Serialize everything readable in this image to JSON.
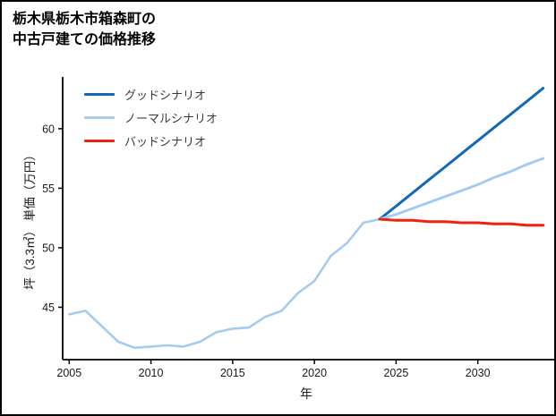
{
  "chart_data": {
    "type": "line",
    "title": "栃木県栃木市箱森町の中古戸建ての価格推移",
    "title_lines": [
      "栃木県栃木市箱森町の",
      "中古戸建ての価格推移"
    ],
    "xlabel": "年",
    "ylabel": "坪（3.3㎡） 単価（万円）",
    "xlim": [
      2004.6,
      2034.4
    ],
    "ylim": [
      40.6,
      64.2
    ],
    "xticks": [
      2005,
      2010,
      2015,
      2020,
      2025,
      2030
    ],
    "yticks": [
      45,
      50,
      55,
      60
    ],
    "axis_color": "#000000",
    "tick_label_color": "#1a1a1a",
    "series": [
      {
        "name": "historical",
        "legend": null,
        "color": "#a4cbf1",
        "width": 2.6,
        "x": [
          2005,
          2006,
          2007,
          2008,
          2009,
          2010,
          2011,
          2012,
          2013,
          2014,
          2015,
          2016,
          2017,
          2018,
          2019,
          2020,
          2021,
          2022,
          2023,
          2024
        ],
        "values": [
          44.4,
          44.7,
          43.4,
          42.1,
          41.6,
          41.7,
          41.8,
          41.7,
          42.1,
          42.9,
          43.2,
          43.3,
          44.2,
          44.7,
          46.2,
          47.2,
          49.3,
          50.4,
          52.1,
          52.4
        ]
      },
      {
        "name": "good-scenario",
        "legend": "グッドシナリオ",
        "color": "#1568b8",
        "width": 3,
        "x": [
          2024,
          2025,
          2026,
          2027,
          2028,
          2029,
          2030,
          2031,
          2032,
          2033,
          2034
        ],
        "values": [
          52.4,
          53.5,
          54.6,
          55.7,
          56.8,
          57.9,
          59.0,
          60.1,
          61.2,
          62.3,
          63.4
        ]
      },
      {
        "name": "normal-scenario",
        "legend": "ノーマルシナリオ",
        "color": "#a4cbf1",
        "width": 3,
        "x": [
          2024,
          2025,
          2026,
          2027,
          2028,
          2029,
          2030,
          2031,
          2032,
          2033,
          2034
        ],
        "values": [
          52.4,
          52.8,
          53.3,
          53.8,
          54.3,
          54.8,
          55.3,
          55.9,
          56.4,
          57.0,
          57.5
        ]
      },
      {
        "name": "bad-scenario",
        "legend": "バッドシナリオ",
        "color": "#ee2211",
        "width": 3,
        "x": [
          2024,
          2025,
          2026,
          2027,
          2028,
          2029,
          2030,
          2031,
          2032,
          2033,
          2034
        ],
        "values": [
          52.4,
          52.3,
          52.3,
          52.2,
          52.2,
          52.1,
          52.1,
          52.0,
          52.0,
          51.9,
          51.9
        ]
      }
    ],
    "legend_position": "upper-left-inside",
    "grid": false
  }
}
